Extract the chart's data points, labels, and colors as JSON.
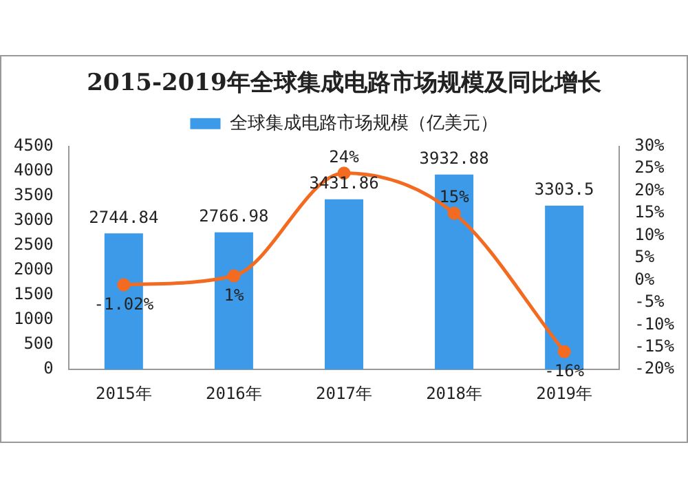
{
  "chart_data": {
    "type": "bar",
    "title": "2015-2019年全球集成电路市场规模及同比增长",
    "categories": [
      "2015年",
      "2016年",
      "2017年",
      "2018年",
      "2019年"
    ],
    "series": [
      {
        "name": "全球集成电路市场规模（亿美元）",
        "color": "#3d9ae8",
        "values": [
          2744.84,
          2766.98,
          3431.86,
          3932.88,
          3303.5
        ],
        "value_labels": [
          "2744.84",
          "2766.98",
          "3431.86",
          "3932.88",
          "3303.5"
        ]
      },
      {
        "type": "line",
        "axis": "y2",
        "color": "#f26b21",
        "values": [
          -1.02,
          1,
          24,
          15,
          -16
        ],
        "value_labels": [
          "-1.02%",
          "1%",
          "24%",
          "15%",
          "-16%"
        ]
      }
    ],
    "ylim": [
      0,
      4500
    ],
    "yticks": [
      0,
      500,
      1000,
      1500,
      2000,
      2500,
      3000,
      3500,
      4000,
      4500
    ],
    "y2lim": [
      -20,
      30
    ],
    "y2ticks": [
      {
        "value": -20,
        "label": "-20%"
      },
      {
        "value": -15,
        "label": "-15%"
      },
      {
        "value": -10,
        "label": "-10%"
      },
      {
        "value": -5,
        "label": "-5%"
      },
      {
        "value": 0,
        "label": "0%"
      },
      {
        "value": 5,
        "label": "5%"
      },
      {
        "value": 10,
        "label": "10%"
      },
      {
        "value": 15,
        "label": "15%"
      },
      {
        "value": 20,
        "label": "20%"
      },
      {
        "value": 25,
        "label": "25%"
      },
      {
        "value": 30,
        "label": "30%"
      }
    ],
    "grid": false,
    "legend": "top",
    "marker": "circle",
    "line_style": "solid"
  }
}
